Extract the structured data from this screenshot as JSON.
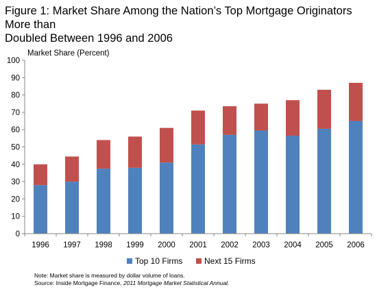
{
  "title_line1": "Figure 1: Market Share Among the Nation’s Top Mortgage Originators More than",
  "title_line2": "Doubled Between 1996 and 2006",
  "note_line1": "Note: Market share is measured by dollar volume of loans.",
  "source_prefix": "Source: Inside Mortgage Finance, ",
  "source_italic": "2011 Mortgage Market Statistical Annual.",
  "chart_data": {
    "type": "bar",
    "stacked": true,
    "categories": [
      "1996",
      "1997",
      "1998",
      "1999",
      "2000",
      "2001",
      "2002",
      "2003",
      "2004",
      "2005",
      "2006"
    ],
    "series": [
      {
        "name": "Top 10 Firms",
        "color": "#4f81bd",
        "values": [
          28,
          30,
          37.5,
          38,
          41,
          51.5,
          57,
          59.5,
          56.5,
          60.5,
          65
        ]
      },
      {
        "name": "Next 15 Firms",
        "color": "#c0504d",
        "values": [
          12,
          14.5,
          16.5,
          18,
          20,
          19.5,
          16.5,
          15.5,
          20.5,
          22.5,
          22
        ]
      }
    ],
    "ylabel": "Market Share (Percent)",
    "ylim": [
      0,
      100
    ],
    "yticks": [
      0,
      10,
      20,
      30,
      40,
      50,
      60,
      70,
      80,
      90,
      100
    ],
    "grid": false,
    "legend_position": "bottom"
  }
}
